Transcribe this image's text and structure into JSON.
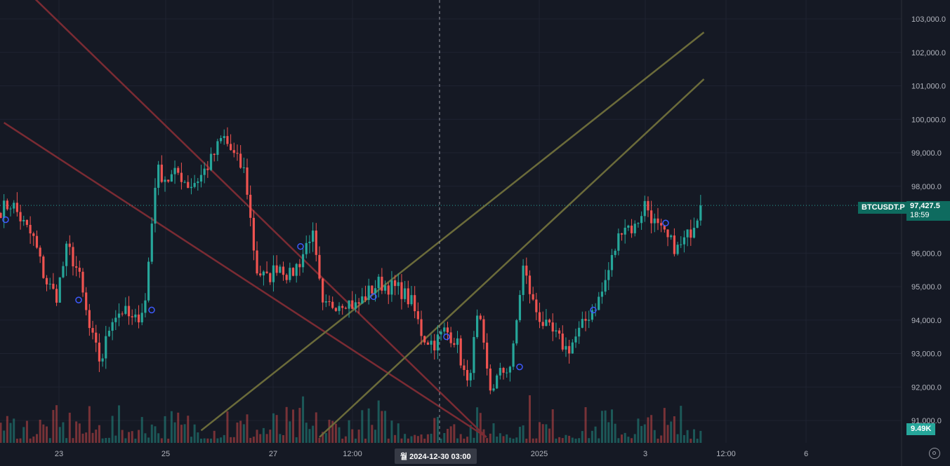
{
  "chart_data": {
    "type": "candlestick",
    "symbol": "BTCUSDT.P",
    "last_price": 97427.5,
    "last_price_label": "97,427.5",
    "countdown": "18:59",
    "volume_label": "9.49K",
    "crosshair_time": "월 2024-12-30   03:00",
    "y_ticks": [
      "103,000.0",
      "102,000.0",
      "101,000.0",
      "100,000.0",
      "99,000.0",
      "98,000.0",
      "96,000.0",
      "95,000.0",
      "94,000.0",
      "93,000.0",
      "92,000.0",
      "91,000.0"
    ],
    "y_tick_values": [
      103000,
      102000,
      101000,
      100000,
      99000,
      98000,
      96000,
      95000,
      94000,
      93000,
      92000,
      91000
    ],
    "x_ticks": [
      "23",
      "25",
      "27",
      "12:00",
      "2025",
      "3",
      "12:00",
      "6"
    ],
    "ylim": [
      90500,
      103500
    ],
    "colors": {
      "up": "#26a69a",
      "down": "#ef5350",
      "trend_red": "#7a2b33",
      "trend_olive": "#6b6b3a",
      "label_bg": "#0e6b5f"
    },
    "price_path": [
      97300,
      97500,
      96900,
      96400,
      95200,
      94700,
      96200,
      95400,
      93700,
      92700,
      94100,
      94300,
      93900,
      94500,
      98500,
      98200,
      98400,
      98000,
      98300,
      98800,
      99500,
      98900,
      98400,
      95500,
      95200,
      95700,
      95300,
      95800,
      96700,
      94300,
      94500,
      94600,
      94400,
      94800,
      95100,
      95000,
      94900,
      94500,
      93500,
      93300,
      93700,
      93400,
      92000,
      94200,
      91900,
      92400,
      92700,
      95600,
      94400,
      93800,
      93500,
      93100,
      93600,
      94200,
      94700,
      95800,
      96900,
      96700,
      97500,
      96800,
      96400,
      96100,
      96600,
      97430
    ],
    "trend_lines": [
      {
        "name": "red-upper",
        "points": [
          [
            1.0,
            104500
          ],
          [
            147.8,
            90500
          ]
        ]
      },
      {
        "name": "red-lower",
        "points": [
          [
            1.0,
            99900
          ],
          [
            147.8,
            90500
          ]
        ]
      },
      {
        "name": "olive-upper",
        "points": [
          [
            61.0,
            90700
          ],
          [
            214.0,
            102600
          ]
        ]
      },
      {
        "name": "olive-lower",
        "points": [
          [
            97.0,
            90500
          ],
          [
            214.0,
            101200
          ]
        ]
      }
    ]
  }
}
